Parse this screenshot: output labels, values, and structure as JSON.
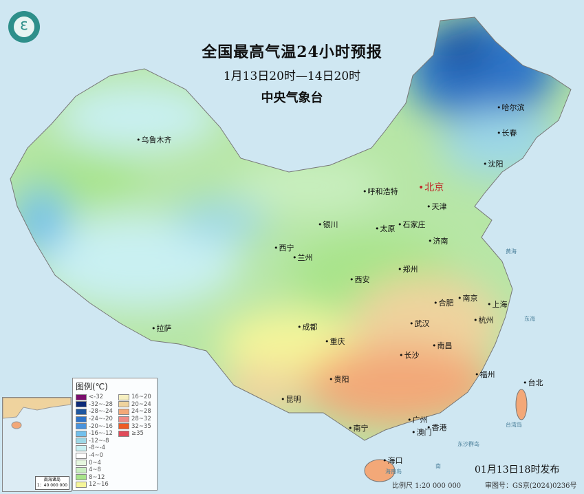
{
  "header": {
    "title": "全国最高气温24小时预报",
    "period": "1月13日20时—14日20时",
    "agency": "中央气象台",
    "logo_icon": "cma-logo-icon"
  },
  "capital": "北京",
  "cities": [
    "乌鲁木齐",
    "哈尔滨",
    "长春",
    "沈阳",
    "呼和浩特",
    "天津",
    "石家庄",
    "太原",
    "银川",
    "西宁",
    "兰州",
    "济南",
    "郑州",
    "西安",
    "合肥",
    "南京",
    "上海",
    "杭州",
    "武汉",
    "成都",
    "重庆",
    "拉萨",
    "长沙",
    "南昌",
    "福州",
    "台北",
    "贵阳",
    "昆明",
    "南宁",
    "广州",
    "香港",
    "澳门",
    "海口"
  ],
  "seas": {
    "yellow_sea": "黄海",
    "east_sea": "东海",
    "taiwan": "台湾岛",
    "dongsha": "东沙群岛",
    "hainan": "海南岛",
    "south_sea": "南"
  },
  "legend": {
    "title": "图例(℃)",
    "items": [
      {
        "label": "<-32",
        "color": "#7a0f6e"
      },
      {
        "label": "-32~-28",
        "color": "#0c2a78"
      },
      {
        "label": "-28~-24",
        "color": "#1f57a0"
      },
      {
        "label": "-24~-20",
        "color": "#2f74c8"
      },
      {
        "label": "-20~-16",
        "color": "#4a93dc"
      },
      {
        "label": "-16~-12",
        "color": "#72c0ec"
      },
      {
        "label": "-12~-8",
        "color": "#9ed8e6"
      },
      {
        "label": "-8~-4",
        "color": "#c9f0f2"
      },
      {
        "label": "-4~0",
        "color": "#ffffff"
      },
      {
        "label": "0~4",
        "color": "#e6f7df"
      },
      {
        "label": "4~8",
        "color": "#c9efc0"
      },
      {
        "label": "8~12",
        "color": "#a8e48a"
      },
      {
        "label": "12~16",
        "color": "#f5f59a"
      },
      {
        "label": "16~20",
        "color": "#f6efc0"
      },
      {
        "label": "20~24",
        "color": "#efd39e"
      },
      {
        "label": "24~28",
        "color": "#f3a878"
      },
      {
        "label": "28~32",
        "color": "#ee8a86"
      },
      {
        "label": "32~35",
        "color": "#ee5a24"
      },
      {
        "label": "≥35",
        "color": "#e14b5a"
      }
    ]
  },
  "inset": {
    "title": "南海诸岛",
    "scale": "1：40 000 000"
  },
  "footer": {
    "issued": "01月13日18时发布",
    "scale": "比例尺 1:20 000 000",
    "map_no": "审图号：GS京(2024)0236号"
  }
}
